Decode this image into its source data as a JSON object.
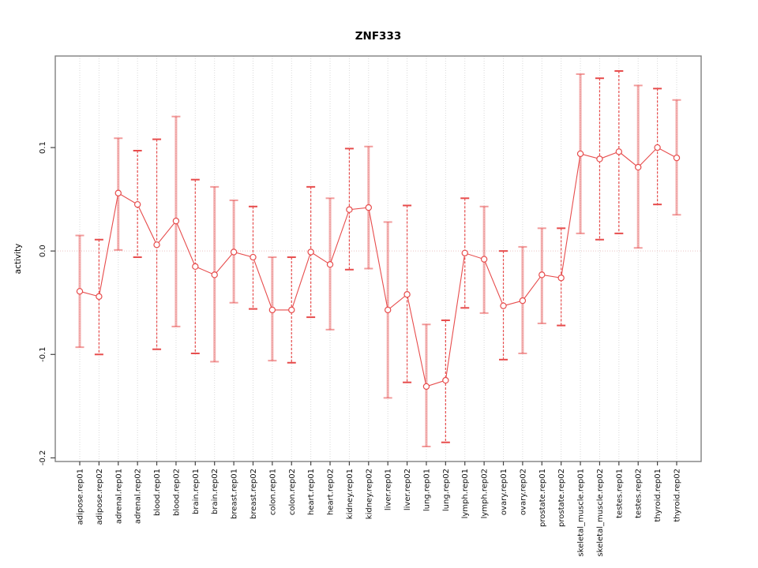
{
  "colors": {
    "red": "#e74c4c",
    "salmon": "rgba(231,76,76,0.45)",
    "salmon_cap": "rgba(231,76,76,0.55)",
    "grid": "#d9d9d9",
    "zero_line": "#e9c2c2",
    "axis_box": "#808080",
    "tick": "#444444",
    "text": "#111111"
  },
  "chart_data": {
    "type": "scatter",
    "subtype": "points-with-error-bars",
    "title": "ZNF333",
    "xlabel": "",
    "ylabel": "activity",
    "ylim": [
      -0.2035,
      0.1885
    ],
    "grid": "vertical dotted line per category",
    "legend_position": "none",
    "zero_line": 0.0,
    "yticks": [
      {
        "value": 0.1,
        "label": "0.1"
      },
      {
        "value": 0.0,
        "label": "0.0"
      },
      {
        "value": -0.1,
        "label": "-0.1"
      },
      {
        "value": -0.2,
        "label": "-0.2"
      }
    ],
    "categories": [
      "adipose.rep01",
      "adipose.rep02",
      "adrenal.rep01",
      "adrenal.rep02",
      "blood.rep01",
      "blood.rep02",
      "brain.rep01",
      "brain.rep02",
      "breast.rep01",
      "breast.rep02",
      "colon.rep01",
      "colon.rep02",
      "heart.rep01",
      "heart.rep02",
      "kidney.rep01",
      "kidney.rep02",
      "liver.rep01",
      "liver.rep02",
      "lung.rep01",
      "lung.rep02",
      "lymph.rep01",
      "lymph.rep02",
      "ovary.rep01",
      "ovary.rep02",
      "prostate.rep01",
      "prostate.rep02",
      "skeletal_muscle.rep01",
      "skeletal_muscle.rep02",
      "testes.rep01",
      "testes.rep02",
      "thyroid.rep01",
      "thyroid.rep02"
    ],
    "points": [
      {
        "label": "adipose.rep01",
        "value": -0.039,
        "lower": -0.093,
        "upper": 0.015,
        "bar_style": "solid"
      },
      {
        "label": "adipose.rep02",
        "value": -0.044,
        "lower": -0.1,
        "upper": 0.011,
        "bar_style": "dashed"
      },
      {
        "label": "adrenal.rep01",
        "value": 0.056,
        "lower": 0.001,
        "upper": 0.109,
        "bar_style": "solid"
      },
      {
        "label": "adrenal.rep02",
        "value": 0.045,
        "lower": -0.006,
        "upper": 0.097,
        "bar_style": "dashed"
      },
      {
        "label": "blood.rep01",
        "value": 0.006,
        "lower": -0.095,
        "upper": 0.108,
        "bar_style": "dashed"
      },
      {
        "label": "blood.rep02",
        "value": 0.029,
        "lower": -0.073,
        "upper": 0.13,
        "bar_style": "solid"
      },
      {
        "label": "brain.rep01",
        "value": -0.015,
        "lower": -0.099,
        "upper": 0.069,
        "bar_style": "dashed"
      },
      {
        "label": "brain.rep02",
        "value": -0.023,
        "lower": -0.107,
        "upper": 0.062,
        "bar_style": "solid"
      },
      {
        "label": "breast.rep01",
        "value": -0.001,
        "lower": -0.05,
        "upper": 0.049,
        "bar_style": "solid"
      },
      {
        "label": "breast.rep02",
        "value": -0.006,
        "lower": -0.056,
        "upper": 0.043,
        "bar_style": "dashed"
      },
      {
        "label": "colon.rep01",
        "value": -0.057,
        "lower": -0.106,
        "upper": -0.006,
        "bar_style": "solid"
      },
      {
        "label": "colon.rep02",
        "value": -0.057,
        "lower": -0.108,
        "upper": -0.006,
        "bar_style": "dashed"
      },
      {
        "label": "heart.rep01",
        "value": -0.001,
        "lower": -0.064,
        "upper": 0.062,
        "bar_style": "dashed"
      },
      {
        "label": "heart.rep02",
        "value": -0.013,
        "lower": -0.076,
        "upper": 0.051,
        "bar_style": "solid"
      },
      {
        "label": "kidney.rep01",
        "value": 0.04,
        "lower": -0.018,
        "upper": 0.099,
        "bar_style": "dashed"
      },
      {
        "label": "kidney.rep02",
        "value": 0.042,
        "lower": -0.017,
        "upper": 0.101,
        "bar_style": "solid"
      },
      {
        "label": "liver.rep01",
        "value": -0.057,
        "lower": -0.142,
        "upper": 0.028,
        "bar_style": "solid"
      },
      {
        "label": "liver.rep02",
        "value": -0.042,
        "lower": -0.127,
        "upper": 0.044,
        "bar_style": "dashed"
      },
      {
        "label": "lung.rep01",
        "value": -0.131,
        "lower": -0.189,
        "upper": -0.071,
        "bar_style": "solid"
      },
      {
        "label": "lung.rep02",
        "value": -0.125,
        "lower": -0.185,
        "upper": -0.067,
        "bar_style": "dashed"
      },
      {
        "label": "lymph.rep01",
        "value": -0.002,
        "lower": -0.055,
        "upper": 0.051,
        "bar_style": "dashed"
      },
      {
        "label": "lymph.rep02",
        "value": -0.008,
        "lower": -0.06,
        "upper": 0.043,
        "bar_style": "solid"
      },
      {
        "label": "ovary.rep01",
        "value": -0.053,
        "lower": -0.105,
        "upper": 0.0,
        "bar_style": "dashed"
      },
      {
        "label": "ovary.rep02",
        "value": -0.048,
        "lower": -0.099,
        "upper": 0.004,
        "bar_style": "solid"
      },
      {
        "label": "prostate.rep01",
        "value": -0.023,
        "lower": -0.07,
        "upper": 0.022,
        "bar_style": "solid"
      },
      {
        "label": "prostate.rep02",
        "value": -0.026,
        "lower": -0.072,
        "upper": 0.022,
        "bar_style": "dashed"
      },
      {
        "label": "skeletal_muscle.rep01",
        "value": 0.094,
        "lower": 0.017,
        "upper": 0.171,
        "bar_style": "solid"
      },
      {
        "label": "skeletal_muscle.rep02",
        "value": 0.089,
        "lower": 0.011,
        "upper": 0.167,
        "bar_style": "dashed"
      },
      {
        "label": "testes.rep01",
        "value": 0.096,
        "lower": 0.017,
        "upper": 0.174,
        "bar_style": "dashed"
      },
      {
        "label": "testes.rep02",
        "value": 0.081,
        "lower": 0.003,
        "upper": 0.16,
        "bar_style": "solid"
      },
      {
        "label": "thyroid.rep01",
        "value": 0.1,
        "lower": 0.045,
        "upper": 0.157,
        "bar_style": "dashed"
      },
      {
        "label": "thyroid.rep02",
        "value": 0.09,
        "lower": 0.035,
        "upper": 0.146,
        "bar_style": "solid"
      }
    ]
  }
}
